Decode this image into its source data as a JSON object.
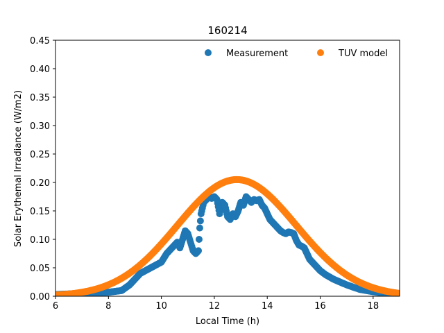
{
  "chart_data": {
    "type": "scatter",
    "title": "160214",
    "xlabel": "Local Time (h)",
    "ylabel": "Solar Erythemal Irradiance (W/m2)",
    "xlim": [
      6,
      19
    ],
    "ylim": [
      0,
      0.45
    ],
    "xticks": [
      "6",
      "8",
      "10",
      "12",
      "14",
      "16",
      "18"
    ],
    "yticks": [
      "0.00",
      "0.05",
      "0.10",
      "0.15",
      "0.20",
      "0.25",
      "0.30",
      "0.35",
      "0.40",
      "0.45"
    ],
    "grid": false,
    "legend_position": "top-right",
    "series": [
      {
        "name": "Measurement",
        "color": "#1f77b4",
        "x": [
          6.0,
          6.5,
          7.0,
          7.5,
          8.0,
          8.5,
          8.8,
          9.0,
          9.2,
          9.4,
          9.6,
          9.8,
          10.0,
          10.2,
          10.4,
          10.6,
          10.7,
          10.8,
          10.9,
          11.0,
          11.1,
          11.2,
          11.3,
          11.4,
          11.45,
          11.5,
          11.55,
          11.6,
          11.7,
          11.8,
          11.9,
          12.0,
          12.1,
          12.2,
          12.3,
          12.4,
          12.5,
          12.6,
          12.7,
          12.8,
          12.9,
          13.0,
          13.1,
          13.2,
          13.3,
          13.4,
          13.5,
          13.6,
          13.7,
          13.8,
          13.9,
          14.0,
          14.1,
          14.2,
          14.3,
          14.4,
          14.5,
          14.6,
          14.7,
          14.8,
          14.9,
          15.0,
          15.1,
          15.2,
          15.3,
          15.4,
          15.5,
          15.6,
          15.8,
          16.0,
          16.2,
          16.5,
          17.0,
          17.5,
          18.0,
          18.5,
          19.0
        ],
        "y": [
          0.003,
          0.004,
          0.005,
          0.006,
          0.007,
          0.01,
          0.02,
          0.03,
          0.04,
          0.045,
          0.05,
          0.055,
          0.06,
          0.075,
          0.085,
          0.095,
          0.085,
          0.1,
          0.115,
          0.11,
          0.095,
          0.08,
          0.075,
          0.08,
          0.12,
          0.145,
          0.155,
          0.165,
          0.17,
          0.175,
          0.172,
          0.175,
          0.17,
          0.145,
          0.165,
          0.16,
          0.14,
          0.135,
          0.145,
          0.14,
          0.15,
          0.165,
          0.16,
          0.175,
          0.17,
          0.165,
          0.17,
          0.168,
          0.17,
          0.16,
          0.155,
          0.145,
          0.135,
          0.13,
          0.125,
          0.12,
          0.115,
          0.112,
          0.11,
          0.113,
          0.112,
          0.11,
          0.098,
          0.09,
          0.088,
          0.085,
          0.075,
          0.065,
          0.055,
          0.045,
          0.038,
          0.03,
          0.02,
          0.012,
          0.008,
          0.005,
          0.004
        ]
      },
      {
        "name": "TUV model",
        "color": "#ff7f0e",
        "model": "gaussian",
        "peak_y": 0.205,
        "peak_x": 12.85,
        "sigma": 2.25,
        "x_range": [
          6,
          19
        ],
        "step": 0.03
      }
    ]
  }
}
